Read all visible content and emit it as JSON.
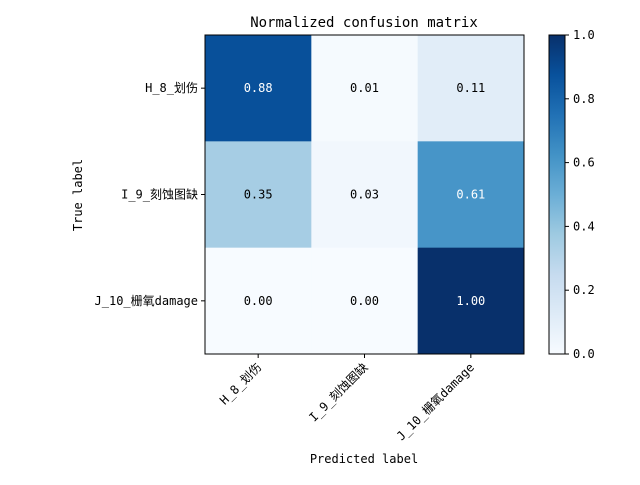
{
  "chart_data": {
    "type": "heatmap",
    "title": "Normalized confusion matrix",
    "xlabel": "Predicted label",
    "ylabel": "True label",
    "x_categories": [
      "H_8_划伤",
      "I_9_刻蚀图缺",
      "J_10_栅氧damage"
    ],
    "y_categories": [
      "H_8_划伤",
      "I_9_刻蚀图缺",
      "J_10_栅氧damage"
    ],
    "values": [
      [
        0.88,
        0.01,
        0.11
      ],
      [
        0.35,
        0.03,
        0.61
      ],
      [
        0.0,
        0.0,
        1.0
      ]
    ],
    "value_labels": [
      [
        "0.88",
        "0.01",
        "0.11"
      ],
      [
        "0.35",
        "0.03",
        "0.61"
      ],
      [
        "0.00",
        "0.00",
        "1.00"
      ]
    ],
    "colormap": "Blues",
    "colorbar": {
      "range": [
        0,
        1
      ],
      "ticks": [
        "0.0",
        "0.2",
        "0.4",
        "0.6",
        "0.8",
        "1.0"
      ]
    },
    "grid": false
  }
}
